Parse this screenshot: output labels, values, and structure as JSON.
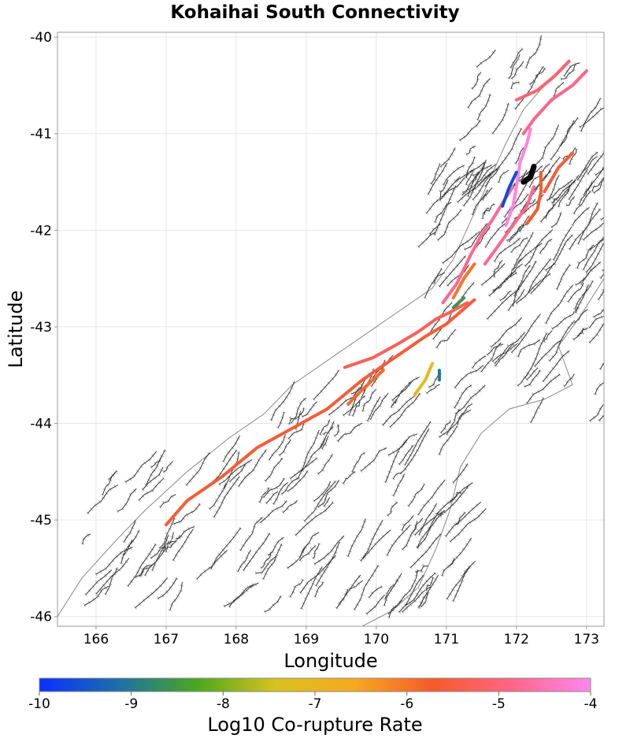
{
  "chart_data": {
    "type": "map",
    "title": "Kohaihai South Connectivity",
    "xlabel": "Longitude",
    "ylabel": "Latitude",
    "xlim": [
      165.45,
      173.25
    ],
    "ylim": [
      -46.1,
      -39.95
    ],
    "x_ticks": [
      166,
      167,
      168,
      169,
      170,
      171,
      172,
      173
    ],
    "y_ticks": [
      -40,
      -41,
      -42,
      -43,
      -44,
      -45,
      -46
    ],
    "grid": true,
    "colorbar": {
      "label": "Log10 Co-rupture Rate",
      "min": -10,
      "max": -4,
      "ticks": [
        -10,
        -9,
        -8,
        -7,
        -6,
        -5,
        -4
      ],
      "colors": [
        "#0a30ff",
        "#1d6fa8",
        "#4aa81e",
        "#d8c21e",
        "#f7a820",
        "#f55a2a",
        "#ff6688",
        "#ff88ee"
      ]
    },
    "source_section": {
      "name": "Kohaihai South",
      "color": "#000000",
      "trace": [
        [
          172.1,
          -41.5
        ],
        [
          172.2,
          -41.45
        ],
        [
          172.25,
          -41.34
        ]
      ]
    },
    "ruptures": [
      {
        "rate": -5.6,
        "trace": [
          [
            167.0,
            -45.05
          ],
          [
            167.3,
            -44.8
          ],
          [
            167.8,
            -44.55
          ],
          [
            168.3,
            -44.25
          ],
          [
            168.8,
            -44.05
          ],
          [
            169.3,
            -43.85
          ],
          [
            169.8,
            -43.55
          ],
          [
            170.3,
            -43.3
          ],
          [
            170.7,
            -43.1
          ],
          [
            171.0,
            -42.97
          ],
          [
            171.4,
            -42.72
          ]
        ]
      },
      {
        "rate": -5.3,
        "trace": [
          [
            169.55,
            -43.42
          ],
          [
            169.95,
            -43.32
          ],
          [
            170.3,
            -43.18
          ],
          [
            170.6,
            -43.05
          ],
          [
            170.85,
            -42.92
          ],
          [
            171.05,
            -42.85
          ],
          [
            171.3,
            -42.75
          ]
        ]
      },
      {
        "rate": -5.9,
        "trace": [
          [
            169.6,
            -43.8
          ],
          [
            169.8,
            -43.65
          ],
          [
            170.1,
            -43.45
          ]
        ]
      },
      {
        "rate": -4.8,
        "trace": [
          [
            170.95,
            -42.75
          ],
          [
            171.15,
            -42.55
          ],
          [
            171.25,
            -42.4
          ],
          [
            171.35,
            -42.25
          ],
          [
            171.5,
            -42.05
          ],
          [
            171.65,
            -41.9
          ],
          [
            171.8,
            -41.72
          ],
          [
            171.95,
            -41.55
          ]
        ]
      },
      {
        "rate": -4.8,
        "trace": [
          [
            171.55,
            -42.35
          ],
          [
            171.7,
            -42.2
          ],
          [
            171.85,
            -42.05
          ],
          [
            172.0,
            -41.9
          ],
          [
            172.15,
            -41.75
          ],
          [
            172.25,
            -41.55
          ]
        ]
      },
      {
        "rate": -5.7,
        "trace": [
          [
            172.15,
            -41.93
          ],
          [
            172.3,
            -41.78
          ],
          [
            172.35,
            -41.6
          ],
          [
            172.35,
            -41.4
          ]
        ]
      },
      {
        "rate": -4.1,
        "trace": [
          [
            171.85,
            -41.95
          ],
          [
            171.95,
            -41.75
          ],
          [
            172.0,
            -41.55
          ],
          [
            172.05,
            -41.3
          ],
          [
            172.15,
            -41.1
          ],
          [
            172.2,
            -40.95
          ]
        ]
      },
      {
        "rate": -4.9,
        "trace": [
          [
            172.1,
            -41.0
          ],
          [
            172.25,
            -40.85
          ],
          [
            172.5,
            -40.65
          ],
          [
            172.8,
            -40.5
          ],
          [
            173.0,
            -40.35
          ]
        ]
      },
      {
        "rate": -5.1,
        "trace": [
          [
            172.0,
            -40.65
          ],
          [
            172.3,
            -40.55
          ],
          [
            172.55,
            -40.4
          ],
          [
            172.75,
            -40.25
          ]
        ]
      },
      {
        "rate": -5.6,
        "trace": [
          [
            172.4,
            -41.6
          ],
          [
            172.6,
            -41.35
          ],
          [
            172.8,
            -41.2
          ]
        ]
      },
      {
        "rate": -6.0,
        "trace": [
          [
            171.1,
            -42.7
          ],
          [
            171.25,
            -42.5
          ],
          [
            171.4,
            -42.35
          ]
        ]
      },
      {
        "rate": -9.6,
        "trace": [
          [
            171.8,
            -41.75
          ],
          [
            171.9,
            -41.55
          ],
          [
            172.0,
            -41.4
          ]
        ]
      },
      {
        "rate": -8.6,
        "trace": [
          [
            171.1,
            -42.8
          ],
          [
            171.25,
            -42.7
          ]
        ]
      },
      {
        "rate": -7.2,
        "trace": [
          [
            170.55,
            -43.7
          ],
          [
            170.7,
            -43.55
          ],
          [
            170.8,
            -43.38
          ]
        ]
      },
      {
        "rate": -9.0,
        "trace": [
          [
            170.9,
            -43.45
          ],
          [
            170.9,
            -43.55
          ]
        ]
      }
    ]
  }
}
